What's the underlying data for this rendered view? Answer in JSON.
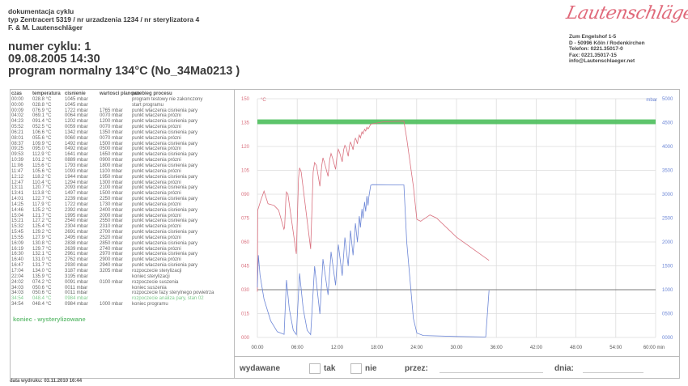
{
  "header": {
    "doc_title": "dokumentacja cyklu",
    "device_line": "typ Zentracert 5319 / nr urzadzenia 1234 / nr sterylizatora 4",
    "company": "F. & M. Lautenschläger",
    "cycle_number": "numer cyklu: 1",
    "datetime": "09.08.2005  14:30",
    "program": "program normalny 134°C (No_34Ma0213 )"
  },
  "logo_text": "Lautenschläger",
  "address": [
    "Zum Engelshof 1-5",
    "D - 50996 Köln / Rodenkirchen",
    "Telefon: 0221.35017-0",
    "Fax: 0221.35017-15",
    "info@Lautenschlaeger.net"
  ],
  "table": {
    "headers": [
      "czas",
      "temperatura",
      "cisnienie",
      "wartosci planowe",
      "przebieg procesu"
    ],
    "rows": [
      [
        "00:00",
        "028.8 °C",
        "1045 mbar",
        "",
        "program testowy nie zakonczony"
      ],
      [
        "00:00",
        "028.8 °C",
        "1045 mbar",
        "",
        "start programu"
      ],
      [
        "00:09",
        "076.9 °C",
        "1722 mbar",
        "1765 mbar",
        "punkt wlaczenia cisnienia pary"
      ],
      [
        "04:02",
        "069.1 °C",
        "0064 mbar",
        "0070 mbar",
        "punkt wlaczenia prózni"
      ],
      [
        "04:23",
        "091.4 °C",
        "1202 mbar",
        "1200 mbar",
        "punkt wlaczenia cisnienia pary"
      ],
      [
        "05:52",
        "052.5 °C",
        "0059 mbar",
        "0070 mbar",
        "punkt wlaczenia prózni"
      ],
      [
        "06:21",
        "106.6 °C",
        "1342 mbar",
        "1350 mbar",
        "punkt wlaczenia cisnienia pary"
      ],
      [
        "08:01",
        "055.6 °C",
        "0060 mbar",
        "0070 mbar",
        "punkt wlaczenia prózni"
      ],
      [
        "08:37",
        "109.9 °C",
        "1492 mbar",
        "1500 mbar",
        "punkt wlaczenia cisnienia pary"
      ],
      [
        "09:25",
        "095.0 °C",
        "0492 mbar",
        "0500 mbar",
        "punkt wlaczenia prózni"
      ],
      [
        "09:53",
        "112.9 °C",
        "1641 mbar",
        "1650 mbar",
        "punkt wlaczenia cisnienia pary"
      ],
      [
        "10:39",
        "101.2 °C",
        "0889 mbar",
        "0900 mbar",
        "punkt wlaczenia prózni"
      ],
      [
        "11:06",
        "115.6 °C",
        "1793 mbar",
        "1800 mbar",
        "punkt wlaczenia cisnienia pary"
      ],
      [
        "11:47",
        "105.6 °C",
        "1093 mbar",
        "1100 mbar",
        "punkt wlaczenia prózni"
      ],
      [
        "12:12",
        "118.2 °C",
        "1944 mbar",
        "1950 mbar",
        "punkt wlaczenia cisnienia pary"
      ],
      [
        "12:47",
        "110.4 °C",
        "1294 mbar",
        "1300 mbar",
        "punkt wlaczenia prózni"
      ],
      [
        "13:11",
        "120.7 °C",
        "2093 mbar",
        "2100 mbar",
        "punkt wlaczenia cisnienia pary"
      ],
      [
        "13:41",
        "113.8 °C",
        "1497 mbar",
        "1500 mbar",
        "punkt wlaczenia prózni"
      ],
      [
        "14:01",
        "122.7 °C",
        "2239 mbar",
        "2250 mbar",
        "punkt wlaczenia cisnienia pary"
      ],
      [
        "14:25",
        "117.9 °C",
        "1722 mbar",
        "1730 mbar",
        "punkt wlaczenia prózni"
      ],
      [
        "14:46",
        "125.2 °C",
        "2392 mbar",
        "2400 mbar",
        "punkt wlaczenia cisnienia pary"
      ],
      [
        "15:04",
        "121.7 °C",
        "1995 mbar",
        "2000 mbar",
        "punkt wlaczenia prózni"
      ],
      [
        "15:21",
        "127.2 °C",
        "2540 mbar",
        "2550 mbar",
        "punkt wlaczenia cisnienia pary"
      ],
      [
        "15:32",
        "125.4 °C",
        "2304 mbar",
        "2310 mbar",
        "punkt wlaczenia prózni"
      ],
      [
        "15:45",
        "129.2 °C",
        "2691 mbar",
        "2700 mbar",
        "punkt wlaczenia cisnienia pary"
      ],
      [
        "15:55",
        "127.9 °C",
        "2495 mbar",
        "2520 mbar",
        "punkt wlaczenia prózni"
      ],
      [
        "16:09",
        "130.8 °C",
        "2838 mbar",
        "2850 mbar",
        "punkt wlaczenia cisnienia pary"
      ],
      [
        "16:19",
        "129.7 °C",
        "2639 mbar",
        "2740 mbar",
        "punkt wlaczenia prózni"
      ],
      [
        "16:30",
        "132.1 °C",
        "2961 mbar",
        "2970 mbar",
        "punkt wlaczenia cisnienia pary"
      ],
      [
        "16:40",
        "131.0 °C",
        "2762 mbar",
        "2900 mbar",
        "punkt wlaczenia prózni"
      ],
      [
        "16:47",
        "131.7 °C",
        "2930 mbar",
        "2940 mbar",
        "punkt wlaczenia cisnienia pary"
      ],
      [
        "17:04",
        "134.0 °C",
        "3187 mbar",
        "3205 mbar",
        "rozpoczecie sterylizacji"
      ],
      [
        "22:04",
        "135.9 °C",
        "3195 mbar",
        "",
        "koniec sterylizacji"
      ],
      [
        "24:02",
        "074.2 °C",
        "0091 mbar",
        "0100 mbar",
        "rozpoczecie suszenia"
      ],
      [
        "34:03",
        "050.6 °C",
        "0011 mbar",
        "",
        "koniec suszenia"
      ],
      [
        "34:03",
        "050.6 °C",
        "0011 mbar",
        "",
        "rozpoczecie fazy sterylnego powietrza"
      ],
      [
        "34:54",
        "048.4 °C",
        "0984 mbar",
        "",
        "rozpoczecie analiza pary, stan 02"
      ],
      [
        "34:54",
        "048.4 °C",
        "0984 mbar",
        "1000 mbar",
        "koniec programu"
      ]
    ],
    "highlight_row": 36,
    "result": "koniec - wysterylizowane"
  },
  "chart_data": {
    "type": "line",
    "title": "",
    "xlabel": "min",
    "x_ticks": [
      "00:00",
      "06:00",
      "12:00",
      "18:00",
      "24:00",
      "30:00",
      "36:00",
      "42:00",
      "48:00",
      "54:00",
      "60:00 min"
    ],
    "xlim": [
      0,
      60
    ],
    "y_left": {
      "label": "°C",
      "ylim": [
        0,
        150
      ],
      "ticks": [
        "150",
        "135",
        "120",
        "105",
        "090",
        "075",
        "060",
        "045",
        "030",
        "015",
        "000"
      ]
    },
    "y_right": {
      "label": "mbar",
      "ylim": [
        0,
        5000
      ],
      "ticks": [
        "5000",
        "4500",
        "4000",
        "3500",
        "3000",
        "2500",
        "2000",
        "1500",
        "1000",
        "0500",
        "0000"
      ]
    },
    "grid": true,
    "sterilization_band_c": [
      134,
      137
    ],
    "reference_line_mbar": 1000,
    "colors": {
      "temperature": "#d9707e",
      "pressure": "#6c86d6",
      "band": "#4cbf5c",
      "reference": "#555555"
    },
    "series": [
      {
        "name": "temperatura",
        "axis": "left",
        "points": [
          [
            0,
            28.8
          ],
          [
            0.05,
            80
          ],
          [
            0.5,
            86
          ],
          [
            1,
            92
          ],
          [
            1.6,
            84
          ],
          [
            2.5,
            83
          ],
          [
            3.2,
            80
          ],
          [
            4.0,
            68
          ],
          [
            4.1,
            69.1
          ],
          [
            4.3,
            88
          ],
          [
            4.38,
            91.4
          ],
          [
            4.6,
            90
          ],
          [
            5.87,
            52.5
          ],
          [
            6.2,
            100
          ],
          [
            6.35,
            106.6
          ],
          [
            6.6,
            104
          ],
          [
            8.02,
            55.6
          ],
          [
            8.4,
            104
          ],
          [
            8.62,
            109.9
          ],
          [
            8.9,
            108
          ],
          [
            9.42,
            95
          ],
          [
            9.7,
            108
          ],
          [
            9.88,
            112.9
          ],
          [
            10.1,
            110
          ],
          [
            10.65,
            101.2
          ],
          [
            10.9,
            112
          ],
          [
            11.1,
            115.6
          ],
          [
            11.3,
            113
          ],
          [
            11.78,
            105.6
          ],
          [
            12.0,
            114
          ],
          [
            12.2,
            118.2
          ],
          [
            12.4,
            116
          ],
          [
            12.78,
            110.4
          ],
          [
            13.0,
            118
          ],
          [
            13.18,
            120.7
          ],
          [
            13.4,
            119
          ],
          [
            13.68,
            113.8
          ],
          [
            13.9,
            121
          ],
          [
            14.02,
            122.7
          ],
          [
            14.2,
            121
          ],
          [
            14.42,
            117.9
          ],
          [
            14.6,
            123
          ],
          [
            14.77,
            125.2
          ],
          [
            14.9,
            124
          ],
          [
            15.07,
            121.7
          ],
          [
            15.2,
            125
          ],
          [
            15.35,
            127.2
          ],
          [
            15.53,
            125.4
          ],
          [
            15.75,
            129.2
          ],
          [
            15.92,
            127.9
          ],
          [
            16.15,
            130.8
          ],
          [
            16.32,
            129.7
          ],
          [
            16.5,
            132.1
          ],
          [
            16.67,
            131
          ],
          [
            16.78,
            131.7
          ],
          [
            17.07,
            134
          ],
          [
            19,
            135.5
          ],
          [
            22.07,
            135.9
          ],
          [
            22.5,
            125
          ],
          [
            23.5,
            95
          ],
          [
            24.03,
            74.2
          ],
          [
            24.6,
            73
          ],
          [
            26,
            77
          ],
          [
            27,
            75
          ],
          [
            30,
            63
          ],
          [
            34.9,
            48.4
          ]
        ]
      },
      {
        "name": "cisnienie",
        "axis": "right",
        "points": [
          [
            0,
            1045
          ],
          [
            0.15,
            1722
          ],
          [
            0.4,
            1300
          ],
          [
            1,
            800
          ],
          [
            2,
            350
          ],
          [
            3,
            120
          ],
          [
            4.03,
            64
          ],
          [
            4.38,
            1202
          ],
          [
            4.8,
            600
          ],
          [
            5.4,
            150
          ],
          [
            5.87,
            59
          ],
          [
            6.35,
            1342
          ],
          [
            6.9,
            600
          ],
          [
            7.5,
            150
          ],
          [
            8.02,
            60
          ],
          [
            8.62,
            1492
          ],
          [
            9.42,
            492
          ],
          [
            9.88,
            1641
          ],
          [
            10.65,
            889
          ],
          [
            11.1,
            1793
          ],
          [
            11.78,
            1093
          ],
          [
            12.2,
            1944
          ],
          [
            12.78,
            1294
          ],
          [
            13.18,
            2093
          ],
          [
            13.68,
            1497
          ],
          [
            14.02,
            2239
          ],
          [
            14.42,
            1722
          ],
          [
            14.77,
            2392
          ],
          [
            15.07,
            1995
          ],
          [
            15.35,
            2540
          ],
          [
            15.53,
            2304
          ],
          [
            15.75,
            2691
          ],
          [
            15.92,
            2495
          ],
          [
            16.15,
            2838
          ],
          [
            16.32,
            2639
          ],
          [
            16.5,
            2961
          ],
          [
            16.67,
            2762
          ],
          [
            16.78,
            2930
          ],
          [
            17.07,
            3187
          ],
          [
            17.3,
            3200
          ],
          [
            22.07,
            3195
          ],
          [
            22.5,
            2000
          ],
          [
            23.5,
            400
          ],
          [
            24.03,
            91
          ],
          [
            25,
            40
          ],
          [
            30,
            20
          ],
          [
            34.05,
            11
          ],
          [
            34.4,
            11
          ],
          [
            34.9,
            984
          ]
        ]
      }
    ]
  },
  "release": {
    "issued": "wydawane",
    "yes": "tak",
    "no": "nie",
    "by": "przez:",
    "date": "dnia:"
  },
  "printed": "data wydruku: 03.11.2010 16:44"
}
